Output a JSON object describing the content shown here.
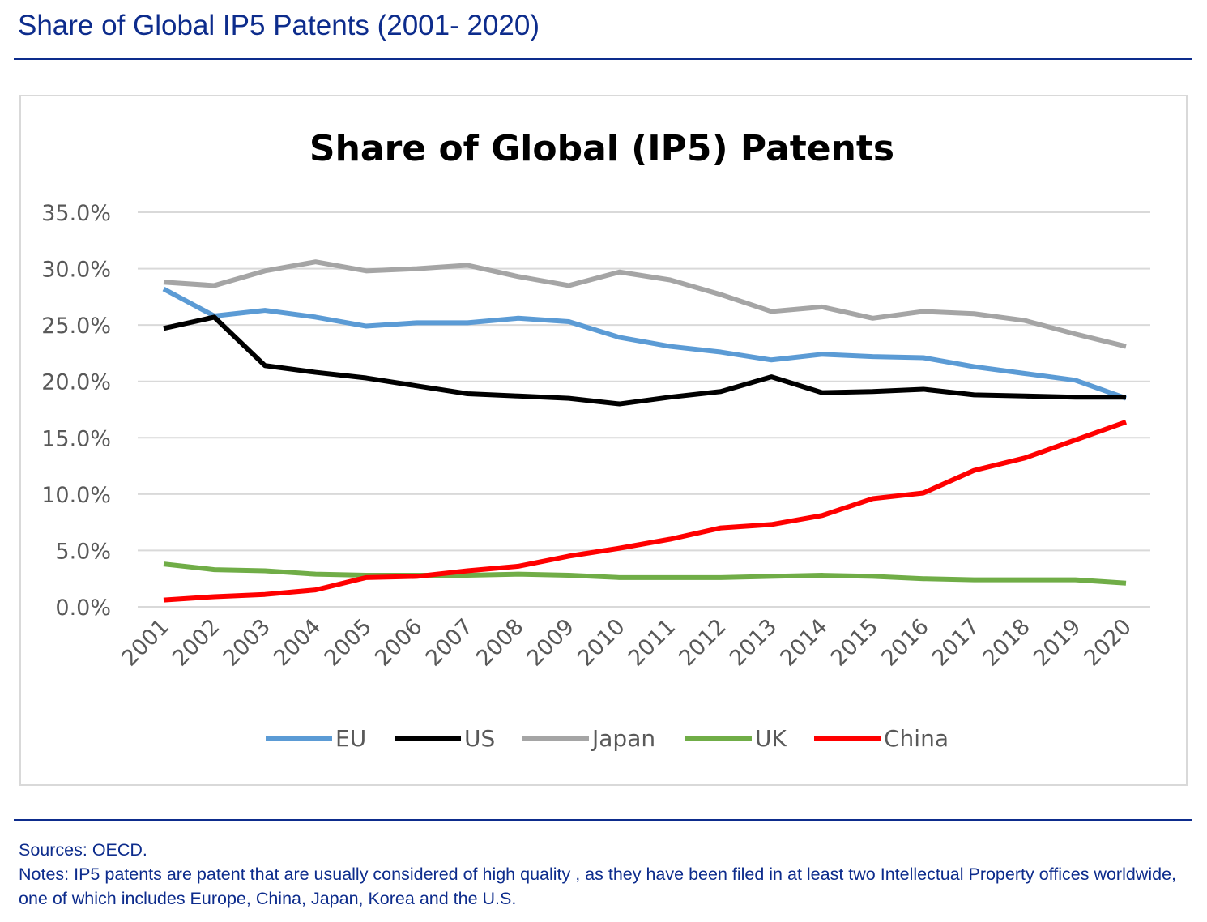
{
  "header": {
    "title": "Share of Global IP5 Patents (2001- 2020)"
  },
  "chart_data": {
    "type": "line",
    "title": "Share of Global (IP5) Patents",
    "xlabel": "",
    "ylabel": "",
    "ylim": [
      0,
      35
    ],
    "yticks": [
      "0.0%",
      "5.0%",
      "10.0%",
      "15.0%",
      "20.0%",
      "25.0%",
      "30.0%",
      "35.0%"
    ],
    "grid": true,
    "legend_position": "bottom",
    "categories": [
      "2001",
      "2002",
      "2003",
      "2004",
      "2005",
      "2006",
      "2007",
      "2008",
      "2009",
      "2010",
      "2011",
      "2012",
      "2013",
      "2014",
      "2015",
      "2016",
      "2017",
      "2018",
      "2019",
      "2020"
    ],
    "series": [
      {
        "name": "EU",
        "color": "#5b9bd5",
        "values": [
          28.2,
          25.8,
          26.3,
          25.7,
          24.9,
          25.2,
          25.2,
          25.6,
          25.3,
          23.9,
          23.1,
          22.6,
          21.9,
          22.4,
          22.2,
          22.1,
          21.3,
          20.7,
          20.1,
          18.5
        ]
      },
      {
        "name": "US",
        "color": "#000000",
        "values": [
          24.7,
          25.7,
          21.4,
          20.8,
          20.3,
          19.6,
          18.9,
          18.7,
          18.5,
          18.0,
          18.6,
          19.1,
          20.4,
          19.0,
          19.1,
          19.3,
          18.8,
          18.7,
          18.6,
          18.6
        ]
      },
      {
        "name": "Japan",
        "color": "#a5a5a5",
        "values": [
          28.8,
          28.5,
          29.8,
          30.6,
          29.8,
          30.0,
          30.3,
          29.3,
          28.5,
          29.7,
          29.0,
          27.7,
          26.2,
          26.6,
          25.6,
          26.2,
          26.0,
          25.4,
          24.2,
          23.1
        ]
      },
      {
        "name": "UK",
        "color": "#70ad47",
        "values": [
          3.8,
          3.3,
          3.2,
          2.9,
          2.8,
          2.8,
          2.8,
          2.9,
          2.8,
          2.6,
          2.6,
          2.6,
          2.7,
          2.8,
          2.7,
          2.5,
          2.4,
          2.4,
          2.4,
          2.1
        ]
      },
      {
        "name": "China",
        "color": "#ff0000",
        "values": [
          0.6,
          0.9,
          1.1,
          1.5,
          2.6,
          2.7,
          3.2,
          3.6,
          4.5,
          5.2,
          6.0,
          7.0,
          7.3,
          8.1,
          9.6,
          10.1,
          12.1,
          13.2,
          14.8,
          16.4
        ]
      }
    ]
  },
  "footer": {
    "sources": "Sources: OECD.",
    "notes": "Notes: IP5 patents are patent that are usually considered of high quality , as they have been filed in at least two Intellectual Property offices worldwide, one of which includes Europe, China, Japan, Korea and the U.S."
  }
}
